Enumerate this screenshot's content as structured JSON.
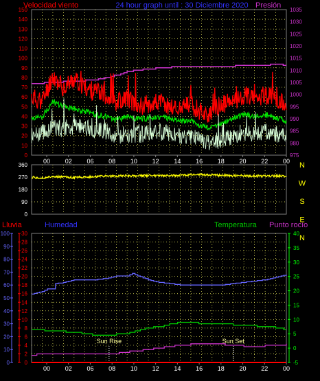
{
  "header": {
    "left": "Velocidad viento",
    "center": "24 hour graph until : 30 Diciembre 2020",
    "right": "Presión"
  },
  "colors": {
    "background": "#000000",
    "frame": "#808080",
    "grid": "#ffff66",
    "wind_speed": "#ff0000",
    "wind_gust": "#00e600",
    "wind_avg": "#d9ffd9",
    "pressure": "#cc33cc",
    "wind_dir": "#ffff00",
    "rain": "#ff0000",
    "humidity": "#6666ff",
    "temperature": "#00cc00",
    "dewpoint": "#cc33cc",
    "title_blue": "#3333ff",
    "temp_axis": "#00ff00"
  },
  "chart_data": [
    {
      "type": "line",
      "name": "wind_and_pressure",
      "x_ticks": [
        "00",
        "02",
        "06",
        "08",
        "10",
        "12",
        "14",
        "16",
        "18",
        "20",
        "22",
        "00"
      ],
      "y_left_ticks": [
        "0",
        "10",
        "20",
        "30",
        "40",
        "50",
        "60",
        "70",
        "80",
        "90",
        "100",
        "110",
        "120",
        "130",
        "140",
        "150"
      ],
      "y_left_range": [
        0,
        150
      ],
      "y_right_ticks": [
        "975",
        "980",
        "985",
        "990",
        "995",
        "1000",
        "1005",
        "1010",
        "1015",
        "1020",
        "1025",
        "1030",
        "1035"
      ],
      "y_right_range": [
        975,
        1035
      ],
      "grid": true,
      "series": [
        {
          "key": "pressure",
          "axis": "right",
          "x": [
            0,
            2,
            4,
            6,
            8,
            9,
            10,
            12,
            14,
            16,
            18,
            20,
            22,
            23,
            24
          ],
          "values": [
            1004.5,
            1005,
            1005.5,
            1006,
            1008,
            1009.5,
            1010,
            1011,
            1011.5,
            1011.5,
            1011.5,
            1012,
            1012,
            1012.5,
            1012
          ]
        },
        {
          "key": "wind_speed",
          "axis": "left",
          "x": [
            0,
            1,
            2,
            2.5,
            3,
            4,
            5,
            6,
            7,
            8,
            9,
            10,
            11,
            12,
            13,
            14,
            15,
            16,
            17,
            18,
            19,
            20,
            21,
            22,
            23,
            24
          ],
          "values": [
            60,
            55,
            82,
            75,
            70,
            78,
            70,
            65,
            62,
            55,
            60,
            50,
            53,
            55,
            50,
            48,
            52,
            45,
            40,
            52,
            55,
            62,
            60,
            62,
            58,
            50
          ]
        },
        {
          "key": "wind_gust",
          "axis": "left",
          "x": [
            0,
            1,
            2,
            2.5,
            3,
            4,
            5,
            6,
            7,
            8,
            9,
            10,
            11,
            12,
            13,
            14,
            15,
            16,
            17,
            18,
            19,
            20,
            21,
            22,
            23,
            24
          ],
          "values": [
            38,
            40,
            55,
            52,
            50,
            48,
            45,
            42,
            40,
            36,
            40,
            37,
            38,
            40,
            37,
            35,
            36,
            30,
            28,
            33,
            38,
            42,
            40,
            42,
            38,
            35
          ]
        },
        {
          "key": "wind_avg",
          "axis": "left",
          "x": [
            0,
            1,
            2,
            2.5,
            3,
            4,
            5,
            6,
            7,
            8,
            9,
            10,
            11,
            12,
            13,
            14,
            15,
            16,
            17,
            18,
            19,
            20,
            21,
            22,
            23,
            24
          ],
          "values": [
            20,
            22,
            30,
            27,
            28,
            30,
            28,
            26,
            24,
            20,
            22,
            21,
            22,
            24,
            22,
            20,
            20,
            15,
            13,
            17,
            20,
            24,
            22,
            24,
            22,
            20
          ]
        }
      ]
    },
    {
      "type": "line",
      "name": "wind_direction",
      "x_ticks": [],
      "y_left_ticks": [
        "0",
        "90",
        "180",
        "270",
        "360"
      ],
      "y_left_range": [
        0,
        360
      ],
      "y_right_ticks": [
        "N",
        "W",
        "S",
        "E",
        "N"
      ],
      "grid": true,
      "series": [
        {
          "key": "wind_dir",
          "x": [
            0,
            1,
            2,
            3,
            4,
            6,
            8,
            10,
            12,
            14,
            16,
            18,
            20,
            22,
            24
          ],
          "values": [
            270,
            262,
            275,
            270,
            268,
            275,
            278,
            280,
            282,
            282,
            290,
            282,
            280,
            278,
            278
          ]
        }
      ]
    },
    {
      "type": "line",
      "name": "humidity_temperature",
      "labels": {
        "rain": "Lluvia",
        "humidity": "Humedad",
        "temperature": "Temperatura",
        "dewpoint": "Punto rocío"
      },
      "x_ticks": [
        "00",
        "02",
        "06",
        "08",
        "10",
        "12",
        "14",
        "16",
        "18",
        "20",
        "22",
        "00"
      ],
      "y_humidity_ticks": [
        "0",
        "10",
        "20",
        "30",
        "40",
        "50",
        "60",
        "70",
        "80",
        "90",
        "100"
      ],
      "y_humidity_range": [
        0,
        100
      ],
      "y_rain_ticks": [
        "0",
        "2",
        "4",
        "6",
        "8",
        "10",
        "12",
        "14",
        "16",
        "18",
        "20",
        "22",
        "24",
        "26",
        "28",
        "30"
      ],
      "y_rain_range": [
        0,
        30
      ],
      "y_temp_ticks": [
        "-5",
        "0",
        "5",
        "10",
        "15",
        "20",
        "25",
        "30",
        "35",
        "40"
      ],
      "y_temp_range": [
        -5,
        40
      ],
      "grid": true,
      "annotations": [
        {
          "label": "Sun Rise",
          "x": 7.3
        },
        {
          "label": "Sun Set",
          "x": 19.0
        }
      ],
      "series": [
        {
          "key": "humidity",
          "axis": "humidity",
          "x": [
            0,
            1,
            1.5,
            2,
            2.2,
            3,
            4,
            5,
            6,
            7,
            8,
            9,
            9.5,
            10,
            11,
            12,
            13,
            14,
            16,
            18,
            19,
            20,
            21,
            22,
            23,
            24
          ],
          "values": [
            53,
            55,
            57,
            57,
            61,
            62,
            64,
            64,
            64,
            65,
            67,
            67,
            69,
            67,
            64,
            62,
            61,
            60,
            60,
            60,
            61,
            62,
            63,
            64,
            66,
            68
          ]
        },
        {
          "key": "temperature",
          "axis": "temp",
          "x": [
            0,
            2,
            4,
            6,
            7,
            8,
            9,
            10,
            11,
            12,
            13,
            14,
            16,
            18,
            19,
            20,
            21,
            22,
            23,
            24
          ],
          "values": [
            6.5,
            6,
            5.5,
            4.5,
            4.5,
            4.8,
            5.2,
            6,
            7,
            7.5,
            8.3,
            9,
            8.7,
            8.5,
            8.2,
            8,
            7.8,
            7.5,
            7.2,
            6.5
          ]
        },
        {
          "key": "dewpoint",
          "axis": "temp",
          "x": [
            0,
            2,
            4,
            6,
            7,
            8,
            9,
            10,
            11,
            12,
            13,
            14,
            16,
            18,
            19,
            20,
            21,
            22,
            23,
            24
          ],
          "values": [
            -2.3,
            -2,
            -1.8,
            -2,
            -2,
            -1.8,
            -1.3,
            -1,
            -0.5,
            0,
            0.5,
            1,
            1.5,
            1.3,
            1,
            0.7,
            0.5,
            0.8,
            1,
            1.3
          ]
        },
        {
          "key": "rain",
          "axis": "rain",
          "x": [
            0,
            24
          ],
          "values": [
            0,
            0
          ]
        }
      ]
    }
  ]
}
